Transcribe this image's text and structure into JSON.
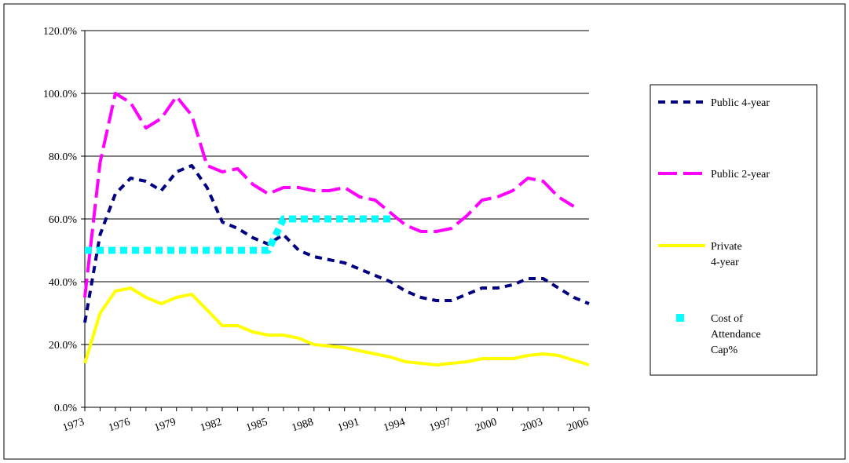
{
  "chart_data": {
    "type": "line",
    "x": [
      1973,
      1974,
      1975,
      1976,
      1977,
      1978,
      1979,
      1980,
      1981,
      1982,
      1983,
      1984,
      1985,
      1986,
      1987,
      1988,
      1989,
      1990,
      1991,
      1992,
      1993,
      1994,
      1995,
      1996,
      1997,
      1998,
      1999,
      2000,
      2001,
      2002,
      2003,
      2004,
      2005,
      2006
    ],
    "xlim": [
      1973,
      2006
    ],
    "xticks": [
      1973,
      1976,
      1979,
      1982,
      1985,
      1988,
      1991,
      1994,
      1997,
      2000,
      2003,
      2006
    ],
    "ylim": [
      0,
      120
    ],
    "yticks": [
      {
        "value": 0,
        "label": "0.0%"
      },
      {
        "value": 20,
        "label": "20.0%"
      },
      {
        "value": 40,
        "label": "40.0%"
      },
      {
        "value": 60,
        "label": "60.0%"
      },
      {
        "value": 80,
        "label": "80.0%"
      },
      {
        "value": 100,
        "label": "100.0%"
      },
      {
        "value": 120,
        "label": "120.0%"
      }
    ],
    "grid": true,
    "legend": "right",
    "series": [
      {
        "name": "Public 4-year",
        "color": "#000080",
        "values": [
          27,
          55,
          68,
          73,
          72,
          69,
          75,
          77,
          70,
          59,
          57,
          54,
          52,
          55,
          50,
          48,
          47,
          46,
          44,
          42,
          40,
          37,
          35,
          34,
          34,
          36,
          38,
          38,
          39,
          41,
          41,
          38,
          35,
          33
        ]
      },
      {
        "name": "Public 2-year",
        "color": "#ff00ff",
        "values": [
          35,
          78,
          100,
          97,
          89,
          92,
          99,
          93,
          77,
          75,
          76,
          71,
          68,
          70,
          70,
          69,
          69,
          70,
          67,
          66,
          62,
          58,
          56,
          56,
          57,
          61,
          66,
          67,
          69,
          73,
          72,
          67,
          64,
          null
        ]
      },
      {
        "name": "Private 4-year",
        "color": "#ffff00",
        "values": [
          14,
          30,
          37,
          38,
          35,
          33,
          35,
          36,
          31,
          26,
          26,
          24,
          23,
          23,
          22,
          20,
          19.5,
          19,
          18,
          17,
          16,
          14.5,
          14,
          13.5,
          14,
          14.5,
          15.5,
          15.5,
          15.5,
          16.5,
          17,
          16.5,
          15,
          13.5
        ]
      },
      {
        "name": "Cost of Attendance Cap%",
        "color": "#00ffff",
        "values": [
          50,
          50,
          50,
          50,
          50,
          50,
          50,
          50,
          50,
          50,
          50,
          50,
          50,
          60,
          60,
          60,
          60,
          60,
          60,
          60,
          60,
          null,
          null,
          null,
          null,
          null,
          null,
          null,
          null,
          null,
          null,
          null,
          null,
          null
        ]
      }
    ]
  }
}
